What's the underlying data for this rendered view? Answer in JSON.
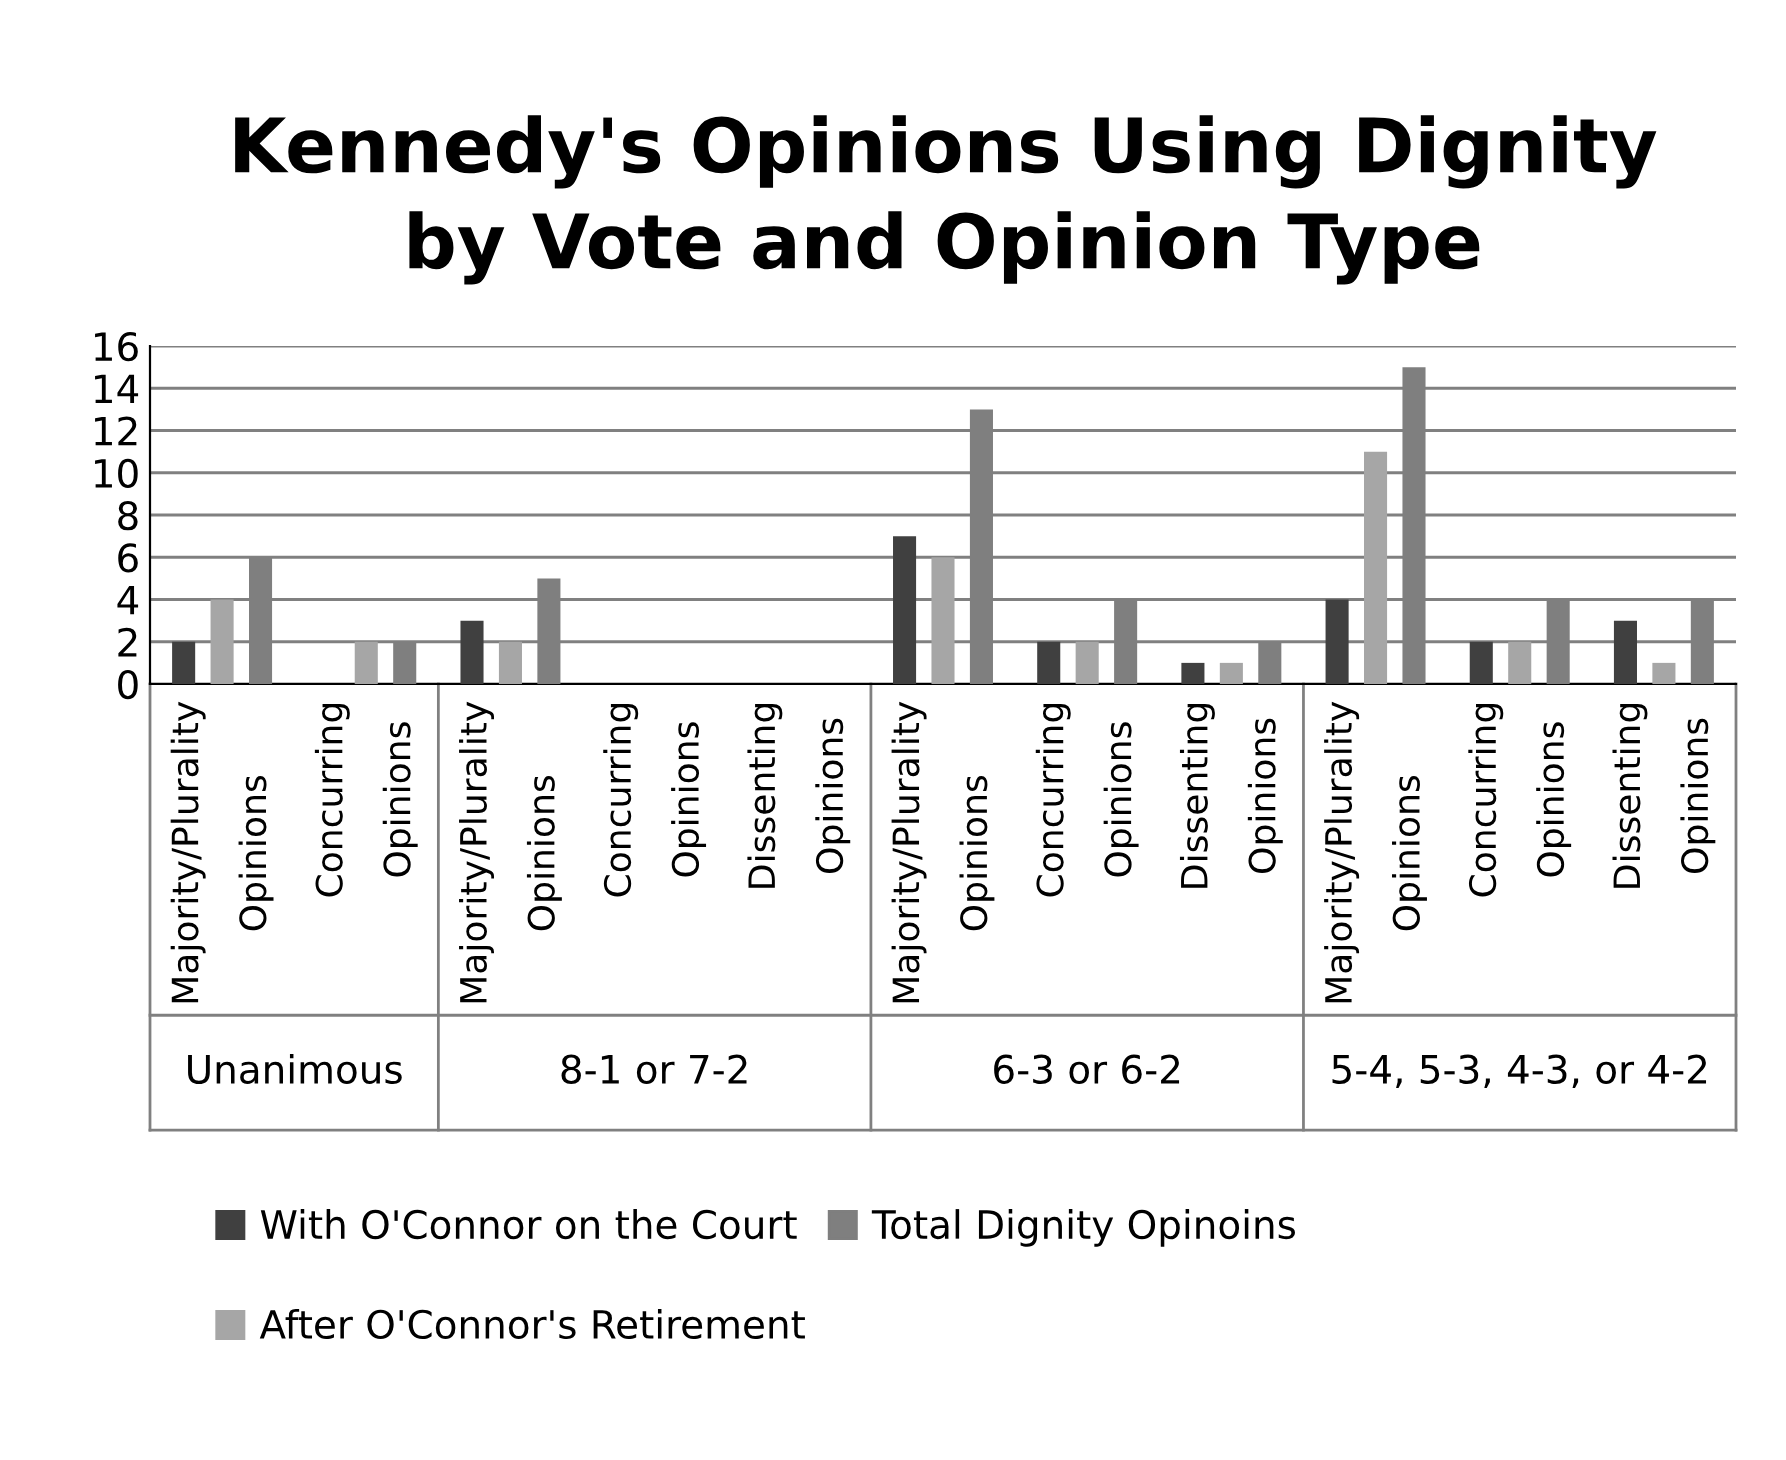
{
  "chart_data": {
    "type": "bar",
    "title": "Kennedy's Opinions Using Dignity\nby Vote and Opinion Type",
    "categories": [
      "Majority/Plurality\nOpinions",
      "Concurring\nOpinions",
      "Majority/Plurality\nOpinions",
      "Concurring\nOpinions",
      "Dissenting\nOpinions",
      "Majority/Plurality\nOpinions",
      "Concurring\nOpinions",
      "Dissenting\nOpinions",
      "Majority/Plurality\nOpinions",
      "Concurring\nOpinions",
      "Dissenting\nOpinions"
    ],
    "series": [
      {
        "name": "With O'Connor on the Court",
        "color": "#404040",
        "values": [
          2,
          0,
          3,
          0,
          0,
          7,
          2,
          1,
          4,
          2,
          3
        ]
      },
      {
        "name": "After O'Connor's Retirement",
        "color": "#a6a6a6",
        "values": [
          4,
          2,
          2,
          0,
          0,
          6,
          2,
          1,
          11,
          2,
          1
        ]
      },
      {
        "name": "Total Dignity Opinoins",
        "color": "#7f7f7f",
        "values": [
          6,
          2,
          5,
          0,
          0,
          13,
          4,
          2,
          15,
          4,
          4
        ]
      }
    ],
    "annotations": [
      "Unanimous",
      "8-1 or 7-2",
      "6-3 or 6-2",
      "5-4, 5-3, 4-3, or 4-2"
    ],
    "ylim": [
      0,
      16
    ],
    "yticks": [
      0,
      2,
      4,
      6,
      8,
      10,
      12,
      14,
      16
    ],
    "grid": "y",
    "legend": "bottom"
  }
}
